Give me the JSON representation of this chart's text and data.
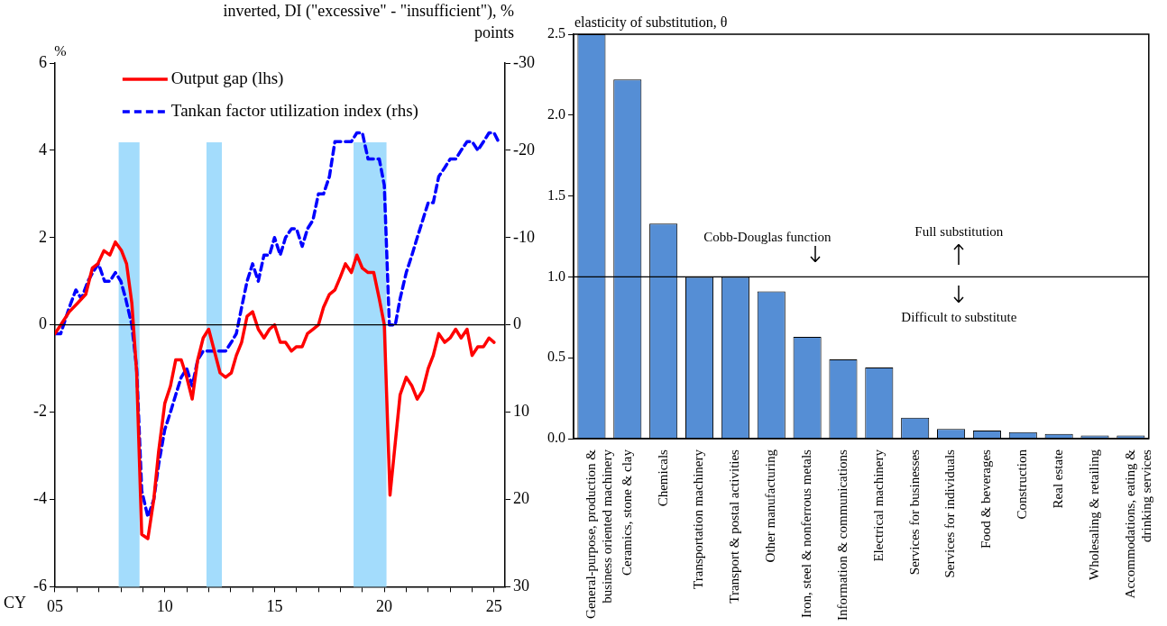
{
  "chart_data": [
    {
      "type": "line",
      "xlabel": "CY",
      "ylabel": "%",
      "y2label": "inverted, DI (\"excessive\" - \"insufficient\"), % points",
      "legend": "top left",
      "grid": false,
      "marker": "none",
      "xlim": [
        2005,
        2025.5
      ],
      "xticks": [
        {
          "value": 2005,
          "label": "05"
        },
        {
          "value": 2006,
          "label": null
        },
        {
          "value": 2007,
          "label": null
        },
        {
          "value": 2008,
          "label": null
        },
        {
          "value": 2009,
          "label": null
        },
        {
          "value": 2010,
          "label": "10"
        },
        {
          "value": 2011,
          "label": null
        },
        {
          "value": 2012,
          "label": null
        },
        {
          "value": 2013,
          "label": null
        },
        {
          "value": 2014,
          "label": null
        },
        {
          "value": 2015,
          "label": "15"
        },
        {
          "value": 2016,
          "label": null
        },
        {
          "value": 2017,
          "label": null
        },
        {
          "value": 2018,
          "label": null
        },
        {
          "value": 2019,
          "label": null
        },
        {
          "value": 2020,
          "label": "20"
        },
        {
          "value": 2021,
          "label": null
        },
        {
          "value": 2022,
          "label": null
        },
        {
          "value": 2023,
          "label": null
        },
        {
          "value": 2024,
          "label": null
        },
        {
          "value": 2025,
          "label": "25"
        }
      ],
      "ylim": [
        -6,
        6
      ],
      "yticks": [
        -6,
        -4,
        -2,
        0,
        2,
        4,
        6
      ],
      "y2lim": [
        30,
        -30
      ],
      "y2ticks": [
        -30,
        -20,
        -10,
        0,
        10,
        20,
        30
      ],
      "ref_lines": [
        {
          "axis": "y",
          "value": 0,
          "color": "#000000"
        }
      ],
      "bands": [
        {
          "axis": "x",
          "from": 2007.9,
          "to": 2008.85,
          "color": "#a3dcfc"
        },
        {
          "axis": "x",
          "from": 2011.9,
          "to": 2012.6,
          "color": "#a3dcfc"
        },
        {
          "axis": "x",
          "from": 2018.6,
          "to": 2020.1,
          "color": "#a3dcfc"
        }
      ],
      "series": [
        {
          "name": "Output gap (lhs)",
          "color": "#ff0000",
          "line_style": "solid",
          "x": [
            2005,
            2005.26,
            2005.65,
            2006.03,
            2006.4,
            2006.7,
            2006.95,
            2007.23,
            2007.5,
            2007.75,
            2008.03,
            2008.26,
            2008.5,
            2008.72,
            2008.95,
            2009.23,
            2009.5,
            2009.72,
            2010,
            2010.26,
            2010.5,
            2010.75,
            2011,
            2011.25,
            2011.5,
            2011.75,
            2012,
            2012.26,
            2012.52,
            2012.77,
            2013.03,
            2013.26,
            2013.5,
            2013.75,
            2014,
            2014.26,
            2014.52,
            2014.77,
            2015,
            2015.26,
            2015.5,
            2015.77,
            2016,
            2016.26,
            2016.5,
            2016.75,
            2017,
            2017.23,
            2017.5,
            2017.75,
            2018,
            2018.23,
            2018.5,
            2018.75,
            2019,
            2019.26,
            2019.52,
            2019.77,
            2020,
            2020.26,
            2020.5,
            2020.72,
            2021,
            2021.26,
            2021.5,
            2021.75,
            2022,
            2022.23,
            2022.48,
            2022.75,
            2023,
            2023.25,
            2023.5,
            2023.77,
            2024,
            2024.26,
            2024.52,
            2024.77,
            2025
          ],
          "values": [
            -0.2,
            0,
            0.3,
            0.5,
            0.7,
            1.3,
            1.4,
            1.7,
            1.6,
            1.9,
            1.7,
            1.4,
            0.5,
            -1.1,
            -4.8,
            -4.9,
            -4.0,
            -2.9,
            -1.8,
            -1.4,
            -0.8,
            -0.8,
            -1.2,
            -1.7,
            -0.8,
            -0.3,
            -0.1,
            -0.6,
            -1.1,
            -1.2,
            -1.1,
            -0.7,
            -0.4,
            0.2,
            0.3,
            -0.1,
            -0.3,
            -0.1,
            0,
            -0.4,
            -0.4,
            -0.6,
            -0.5,
            -0.5,
            -0.2,
            -0.1,
            0,
            0.4,
            0.7,
            0.8,
            1.1,
            1.4,
            1.2,
            1.6,
            1.3,
            1.2,
            1.2,
            0.6,
            0,
            -3.9,
            -2.7,
            -1.6,
            -1.2,
            -1.4,
            -1.7,
            -1.5,
            -1.0,
            -0.7,
            -0.2,
            -0.4,
            -0.3,
            -0.1,
            -0.3,
            -0.1,
            -0.7,
            -0.5,
            -0.5,
            -0.3,
            -0.4
          ]
        },
        {
          "name": "Tankan factor utilization index (rhs)",
          "color": "#0000ff",
          "line_style": "dashed",
          "axis": "y2",
          "x": [
            2005,
            2005.26,
            2005.65,
            2005.95,
            2006.2,
            2006.5,
            2006.72,
            2006.98,
            2007.26,
            2007.5,
            2007.75,
            2008,
            2008.22,
            2008.5,
            2008.72,
            2008.95,
            2009.23,
            2009.5,
            2009.72,
            2010,
            2010.26,
            2010.5,
            2010.75,
            2011,
            2011.25,
            2011.5,
            2011.75,
            2012,
            2012.26,
            2012.52,
            2012.77,
            2013.03,
            2013.26,
            2013.5,
            2013.75,
            2014,
            2014.26,
            2014.52,
            2014.77,
            2015,
            2015.26,
            2015.5,
            2015.77,
            2016,
            2016.26,
            2016.5,
            2016.75,
            2017,
            2017.23,
            2017.5,
            2017.75,
            2018,
            2018.23,
            2018.5,
            2018.75,
            2019,
            2019.26,
            2019.52,
            2019.77,
            2020,
            2020.23,
            2020.5,
            2020.72,
            2021,
            2021.26,
            2021.5,
            2021.75,
            2022,
            2022.23,
            2022.48,
            2022.75,
            2023,
            2023.25,
            2023.5,
            2023.77,
            2024,
            2024.26,
            2024.52,
            2024.77,
            2025,
            2025.2
          ],
          "values": [
            1,
            1,
            -2,
            -4,
            -3,
            -5,
            -6,
            -7,
            -5,
            -5,
            -6,
            -5,
            -3,
            0,
            5,
            19,
            22,
            20,
            16,
            12,
            10,
            8,
            6,
            5,
            7,
            4,
            3,
            3,
            3,
            3,
            3,
            2,
            1,
            -2,
            -5,
            -7,
            -5,
            -8,
            -8,
            -10,
            -8,
            -10,
            -11,
            -11,
            -9,
            -11,
            -12,
            -15,
            -15,
            -17,
            -21,
            -21,
            -21,
            -21,
            -22,
            -22,
            -19,
            -19,
            -19,
            -16,
            0,
            0,
            -3,
            -6,
            -8,
            -10,
            -12,
            -14,
            -14,
            -17,
            -18,
            -19,
            -19,
            -20,
            -21,
            -21,
            -20,
            -21,
            -22,
            -22,
            -21
          ]
        }
      ]
    },
    {
      "type": "bar",
      "ylabel": "elasticity of substitution, θ",
      "grid": false,
      "legend": false,
      "color": "#558ed5",
      "categories": [
        "General-purpose, production & business oriented machinery",
        "Ceramics, stone & clay",
        "Chemicals",
        "Transportation machinery",
        "Transport & postal activities",
        "Other manufacturing",
        "Iron, steel & nonferrous metals",
        "Information & communications",
        "Electrical machinery",
        "Services for businesses",
        "Services for individuals",
        "Food & beverages",
        "Construction",
        "Real estate",
        "Wholesaling & retailing",
        "Accommodations, eating & drinking services"
      ],
      "values": [
        2.5,
        2.22,
        1.33,
        1.0,
        1.0,
        0.91,
        0.63,
        0.49,
        0.44,
        0.13,
        0.06,
        0.05,
        0.04,
        0.03,
        0.02,
        0.02
      ],
      "ylim": [
        0,
        2.5
      ],
      "yticks": [
        {
          "value": 0,
          "label": "0.0"
        },
        {
          "value": 0.5,
          "label": "0.5"
        },
        {
          "value": 1,
          "label": "1.0"
        },
        {
          "value": 1.5,
          "label": "1.5"
        },
        {
          "value": 2,
          "label": "2.0"
        },
        {
          "value": 2.5,
          "label": "2.5"
        }
      ],
      "ref_lines": [
        {
          "axis": "y",
          "value": 1,
          "color": "#000000"
        }
      ],
      "annotations": [
        {
          "text": "Cobb-Douglas function",
          "y": 1
        },
        {
          "text": "Full substitution",
          "y": 1
        },
        {
          "text": "Difficult to substitute",
          "y": 1
        }
      ]
    }
  ]
}
